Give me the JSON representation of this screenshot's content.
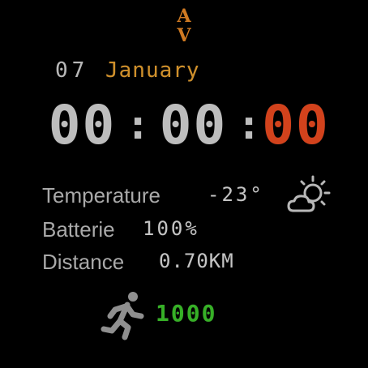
{
  "logo": {
    "top": "A",
    "bottom": "V"
  },
  "date": {
    "day": "07",
    "month": "January"
  },
  "time": {
    "hours": "00",
    "minutes": "00",
    "seconds": "00",
    "separator": ":"
  },
  "temperature": {
    "label": "Temperature",
    "value": "-23°"
  },
  "battery": {
    "label": "Batterie",
    "value": "100%"
  },
  "distance": {
    "label": "Distance",
    "value": "0.70KM"
  },
  "steps": {
    "value": "1000"
  },
  "icons": {
    "weather": "partly-cloudy-icon",
    "activity": "running-person-icon"
  },
  "colors": {
    "accent": "#d0902a",
    "seconds": "#d2421c",
    "steps": "#36b026",
    "text": "#bdbdbd"
  }
}
